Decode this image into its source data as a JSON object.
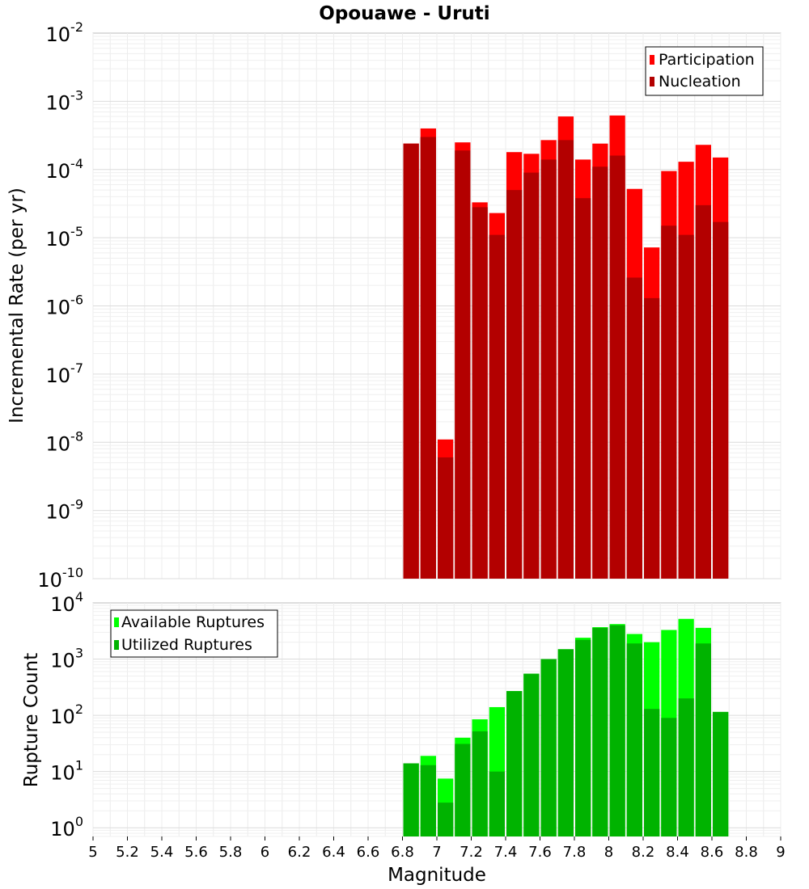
{
  "title": "Opouawe - Uruti",
  "xlabel": "Magnitude",
  "x_ticks": [
    "5",
    "5.2",
    "5.4",
    "5.6",
    "5.8",
    "6",
    "6.2",
    "6.4",
    "6.6",
    "6.8",
    "7",
    "7.2",
    "7.4",
    "7.6",
    "7.8",
    "8",
    "8.2",
    "8.4",
    "8.6",
    "8.8",
    "9"
  ],
  "colors": {
    "participation": "#ff0000",
    "nucleation": "#b30000",
    "available": "#00ff00",
    "utilized": "#00b300"
  },
  "chart_data": [
    {
      "type": "bar",
      "ylabel": "Incremental Rate (per yr)",
      "yscale": "log",
      "xlim": [
        5,
        9
      ],
      "ylim": [
        1e-10,
        0.01
      ],
      "y_tick_exponents": [
        "-10",
        "-9",
        "-8",
        "-7",
        "-6",
        "-5",
        "-4",
        "-3",
        "-2"
      ],
      "grid": true,
      "legend_position": "top-right",
      "x": [
        6.85,
        6.95,
        7.05,
        7.15,
        7.25,
        7.35,
        7.45,
        7.55,
        7.65,
        7.75,
        7.85,
        7.95,
        8.05,
        8.15,
        8.25,
        8.35,
        8.45,
        8.55,
        8.65
      ],
      "series": [
        {
          "name": "Participation",
          "values": [
            0.00024,
            0.0004,
            1.1e-08,
            0.00025,
            3.3e-05,
            2.3e-05,
            0.00018,
            0.00017,
            0.00027,
            0.0006,
            0.00014,
            0.00024,
            0.00062,
            5.2e-05,
            7.2e-06,
            9.5e-05,
            0.00013,
            0.00023,
            0.00015
          ]
        },
        {
          "name": "Nucleation",
          "values": [
            0.00024,
            0.0003,
            6e-09,
            0.00019,
            2.8e-05,
            1.1e-05,
            5e-05,
            9e-05,
            0.00014,
            0.00027,
            3.8e-05,
            0.00011,
            0.00016,
            2.6e-06,
            1.3e-06,
            1.5e-05,
            1.1e-05,
            3e-05,
            1.7e-05
          ]
        }
      ]
    },
    {
      "type": "bar",
      "ylabel": "Rupture Count",
      "yscale": "log",
      "xlim": [
        5,
        9
      ],
      "ylim": [
        0.7,
        10000
      ],
      "y_tick_exponents": [
        "0",
        "1",
        "2",
        "3",
        "4"
      ],
      "grid": true,
      "legend_position": "top-left",
      "x": [
        6.85,
        6.95,
        7.05,
        7.15,
        7.25,
        7.35,
        7.45,
        7.55,
        7.65,
        7.75,
        7.85,
        7.95,
        8.05,
        8.15,
        8.25,
        8.35,
        8.45,
        8.55,
        8.65
      ],
      "series": [
        {
          "name": "Available Ruptures",
          "values": [
            14,
            19,
            7.5,
            40,
            85,
            140,
            270,
            550,
            1000,
            1500,
            2400,
            3700,
            4200,
            2800,
            2000,
            3300,
            5200,
            3600,
            115
          ]
        },
        {
          "name": "Utilized Ruptures",
          "values": [
            14,
            13,
            2.8,
            31,
            52,
            10,
            270,
            550,
            1000,
            1500,
            2200,
            3600,
            4000,
            1900,
            130,
            90,
            200,
            1900,
            115
          ]
        }
      ]
    }
  ]
}
